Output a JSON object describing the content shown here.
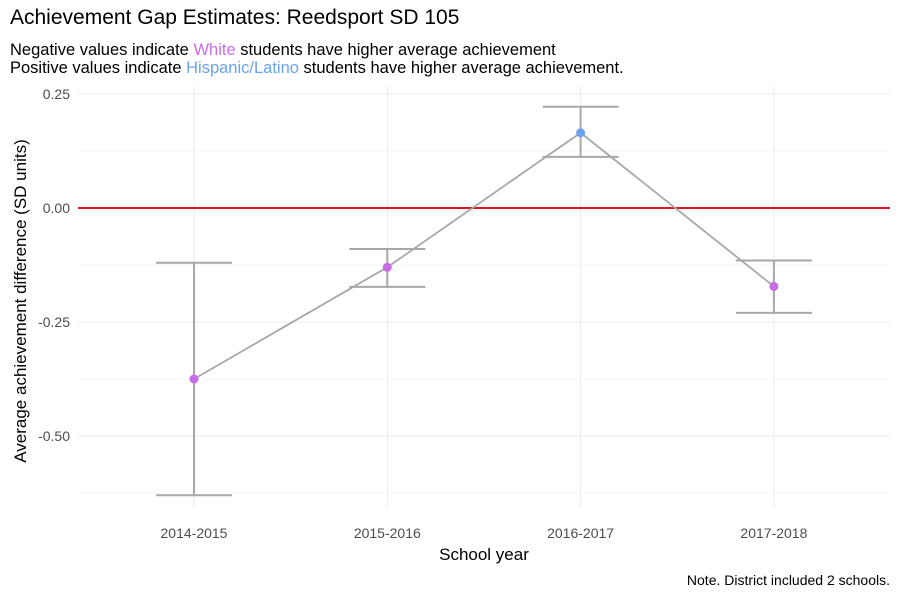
{
  "title": "Achievement Gap Estimates: Reedsport SD 105",
  "subtitle": {
    "line1_pre": "Negative values indicate ",
    "line1_group": "White",
    "line1_post": " students have higher average achievement",
    "line2_pre": "Positive values indicate ",
    "line2_group": "Hispanic/Latino",
    "line2_post": " students have higher average achievement."
  },
  "caption": "Note. District included 2 schools.",
  "colors": {
    "white_group": "#c86de8",
    "hispanic_group": "#6aa3f0",
    "reference_line": "#e0141e",
    "connector_line": "#a8a8a8",
    "grid": "#ebebeb"
  },
  "chart_data": {
    "type": "line",
    "xlabel": "School year",
    "ylabel": "Average achievement difference (SD units)",
    "categories": [
      "2014-2015",
      "2015-2016",
      "2016-2017",
      "2017-2018"
    ],
    "values": [
      -0.375,
      -0.13,
      0.165,
      -0.172
    ],
    "lower": [
      -0.63,
      -0.173,
      0.112,
      -0.23
    ],
    "upper": [
      -0.12,
      -0.09,
      0.222,
      -0.115
    ],
    "point_colors": [
      "#c86de8",
      "#c86de8",
      "#6aa3f0",
      "#c86de8"
    ],
    "yticks": [
      0.25,
      0.0,
      -0.25,
      -0.5
    ],
    "ytick_labels": [
      "0.25",
      "0.00",
      "-0.25",
      "-0.50"
    ],
    "ylim": [
      -0.65,
      0.26
    ],
    "reference_line_y": 0,
    "grid": true,
    "legend": "none"
  }
}
